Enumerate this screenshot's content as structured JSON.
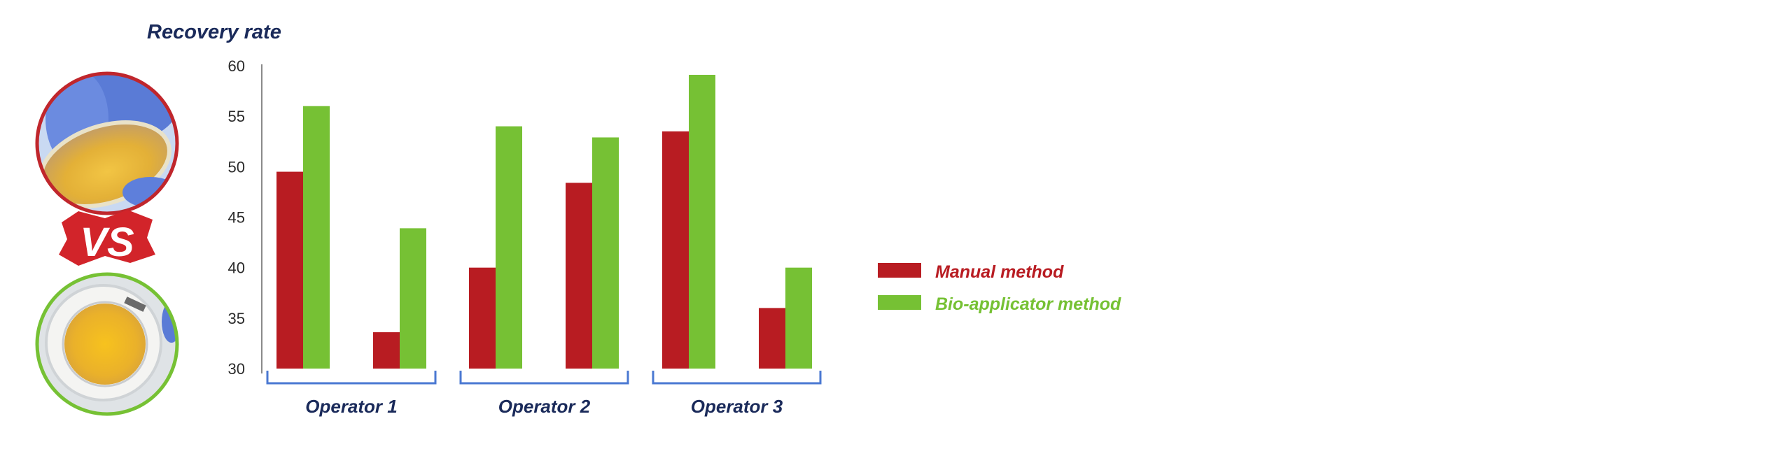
{
  "colors": {
    "manual": "#b81c22",
    "bio": "#76c134",
    "axis_text": "#2b2b2b",
    "bracket": "#4a78d2",
    "navy": "#1a2a5a",
    "badge_red": "#d2242a",
    "photo_top_ring": "#c0262c",
    "photo_bottom_ring": "#76c134"
  },
  "icons": {
    "top_photo": "petri-dish-gloved-hand-photo",
    "bottom_photo": "bio-applicator-photo",
    "vs_badge": "vs-badge"
  },
  "badge_text": "VS",
  "chart_data": {
    "type": "bar",
    "title": "Recovery rate",
    "ylim": [
      30,
      60
    ],
    "yticks": [
      30,
      35,
      40,
      45,
      50,
      55,
      60
    ],
    "categories": [
      "",
      "",
      "",
      "",
      "",
      ""
    ],
    "groups": [
      {
        "label": "Operator 1",
        "span": [
          0,
          1
        ]
      },
      {
        "label": "Operator 2",
        "span": [
          2,
          3
        ]
      },
      {
        "label": "Operator 3",
        "span": [
          4,
          5
        ]
      }
    ],
    "series": [
      {
        "name": "Manual method",
        "values": [
          49.5,
          33.6,
          40.0,
          48.4,
          53.5,
          36.0
        ]
      },
      {
        "name": "Bio-applicator method",
        "values": [
          56.0,
          43.9,
          54.0,
          52.9,
          59.1,
          40.0
        ]
      }
    ],
    "legend_position": "right",
    "grid": false
  }
}
